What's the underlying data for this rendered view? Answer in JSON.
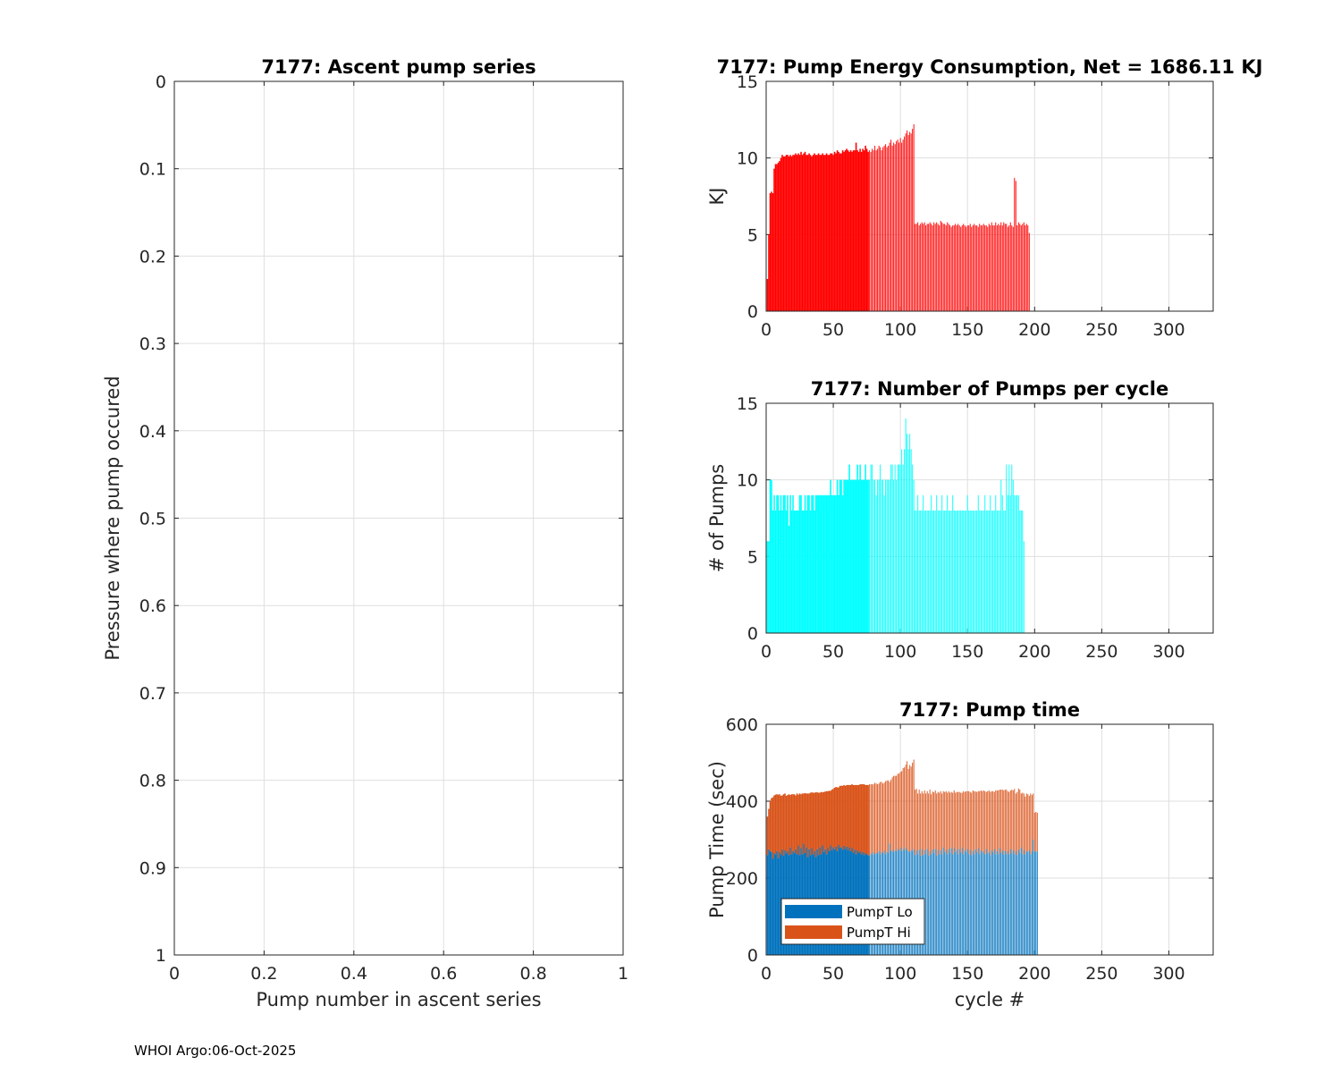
{
  "footer": "WHOI Argo:06-Oct-2025",
  "colors": {
    "energy": "#ff0000",
    "pumps": "#00ffff",
    "pumpLo": "#0072bd",
    "pumpHi": "#d95319",
    "grid": "#dfdfdf"
  },
  "chart_data": [
    {
      "id": "ascent",
      "type": "scatter",
      "title": "7177: Ascent pump series",
      "xlabel": "Pump number in ascent series",
      "ylabel": "Pressure where pump occured",
      "xlim": [
        0,
        1
      ],
      "ylim": [
        0,
        1
      ],
      "y_reversed": true,
      "grid": true,
      "xticks": [
        "0",
        "0.2",
        "0.4",
        "0.6",
        "0.8",
        "1"
      ],
      "yticks": [
        "0",
        "0.1",
        "0.2",
        "0.3",
        "0.4",
        "0.5",
        "0.6",
        "0.7",
        "0.8",
        "0.9",
        "1"
      ],
      "points": []
    },
    {
      "id": "energy",
      "type": "bar",
      "title": "7177: Pump Energy Consumption,  Net = 1686.11 KJ",
      "xlabel": "",
      "ylabel": "KJ",
      "xlim": [
        0,
        333
      ],
      "ylim": [
        0,
        15
      ],
      "grid": true,
      "xticks": [
        "0",
        "50",
        "100",
        "150",
        "200",
        "250",
        "300"
      ],
      "yticks": [
        "0",
        "5",
        "10",
        "15"
      ],
      "dense_until_cycle": 76,
      "values": [
        2.1,
        5.0,
        7.7,
        7.8,
        7.7,
        9.3,
        9.6,
        9.6,
        9.7,
        9.8,
        10.0,
        10.2,
        10.1,
        10.1,
        10.2,
        10.2,
        10.1,
        10.2,
        10.1,
        10.2,
        10.2,
        10.3,
        10.2,
        10.3,
        10.2,
        10.4,
        10.2,
        10.3,
        10.4,
        10.2,
        10.2,
        10.3,
        10.2,
        10.1,
        10.2,
        10.3,
        10.2,
        10.2,
        10.3,
        10.2,
        10.2,
        10.3,
        10.2,
        10.2,
        10.3,
        10.2,
        10.2,
        10.3,
        10.3,
        10.2,
        10.4,
        10.3,
        10.5,
        10.4,
        10.3,
        10.3,
        10.5,
        10.4,
        10.5,
        10.6,
        10.5,
        10.4,
        10.5,
        10.4,
        10.5,
        10.5,
        11.0,
        10.5,
        10.4,
        10.6,
        10.4,
        10.6,
        10.5,
        10.8,
        10.6,
        10.4,
        10.5,
        10.4,
        10.6,
        10.5,
        10.8,
        10.5,
        10.6,
        10.8,
        10.7,
        10.5,
        10.7,
        10.8,
        10.9,
        10.7,
        10.8,
        11.0,
        11.2,
        10.8,
        11.0,
        10.9,
        11.1,
        11.2,
        11.0,
        11.3,
        11.0,
        11.2,
        11.4,
        11.6,
        11.8,
        11.5,
        11.7,
        11.6,
        11.9,
        12.2,
        5.7,
        5.7,
        5.8,
        5.6,
        5.7,
        5.8,
        5.7,
        5.8,
        5.6,
        5.7,
        5.7,
        5.8,
        5.7,
        5.6,
        5.8,
        5.7,
        5.8,
        5.7,
        5.6,
        5.9,
        5.8,
        5.7,
        5.7,
        5.6,
        5.8,
        5.7,
        5.6,
        5.5,
        5.6,
        5.6,
        5.7,
        5.6,
        5.7,
        5.6,
        5.5,
        5.6,
        5.7,
        5.6,
        5.5,
        5.6,
        5.6,
        5.7,
        5.5,
        5.6,
        5.7,
        5.6,
        5.6,
        5.5,
        5.7,
        5.6,
        5.6,
        5.7,
        5.6,
        5.6,
        5.5,
        5.7,
        5.6,
        5.8,
        5.6,
        5.6,
        5.8,
        5.6,
        5.7,
        5.6,
        5.8,
        5.6,
        5.8,
        5.7,
        5.7,
        5.5,
        5.6,
        5.8,
        5.6,
        5.5,
        8.7,
        8.5,
        5.6,
        5.8,
        5.7,
        5.6,
        5.7,
        5.8,
        5.6,
        5.7,
        5.6,
        5.1
      ]
    },
    {
      "id": "pumps",
      "type": "bar",
      "title": "7177: Number of Pumps per cycle",
      "xlabel": "",
      "ylabel": "# of Pumps",
      "xlim": [
        0,
        333
      ],
      "ylim": [
        0,
        15
      ],
      "grid": true,
      "xticks": [
        "0",
        "50",
        "100",
        "150",
        "200",
        "250",
        "300"
      ],
      "yticks": [
        "0",
        "5",
        "10",
        "15"
      ],
      "dense_until_cycle": 76,
      "values": [
        6,
        6,
        10,
        10,
        8,
        9,
        8,
        9,
        9,
        8,
        9,
        8,
        9,
        9,
        8,
        9,
        7,
        9,
        8,
        9,
        8,
        8,
        8,
        8,
        9,
        9,
        8,
        8,
        9,
        8,
        9,
        9,
        8,
        9,
        9,
        8,
        9,
        9,
        9,
        9,
        9,
        9,
        9,
        9,
        9,
        9,
        9,
        10,
        9,
        9,
        9,
        9,
        10,
        9,
        10,
        10,
        9,
        10,
        10,
        10,
        10,
        11,
        10,
        10,
        10,
        10,
        10,
        11,
        10,
        11,
        10,
        10,
        10,
        11,
        10,
        10,
        10,
        11,
        11,
        10,
        10,
        9,
        10,
        10,
        11,
        10,
        10,
        9,
        10,
        10,
        10,
        10,
        11,
        11,
        10,
        11,
        10,
        11,
        11,
        11,
        12,
        11,
        12,
        14,
        13,
        12,
        13,
        12,
        11,
        10,
        8,
        8,
        9,
        8,
        8,
        8,
        9,
        8,
        8,
        8,
        8,
        8,
        9,
        8,
        8,
        8,
        9,
        8,
        8,
        8,
        9,
        8,
        8,
        8,
        9,
        8,
        8,
        8,
        9,
        8,
        8,
        8,
        8,
        8,
        8,
        8,
        8,
        8,
        8,
        9,
        8,
        8,
        8,
        8,
        8,
        8,
        8,
        9,
        8,
        8,
        8,
        8,
        9,
        8,
        8,
        8,
        9,
        8,
        8,
        8,
        9,
        8,
        8,
        8,
        10,
        9,
        8,
        8,
        11,
        9,
        11,
        9,
        11,
        10,
        9,
        9,
        9,
        9,
        8,
        8,
        8,
        6
      ]
    },
    {
      "id": "pumptime",
      "type": "bar",
      "stacked": true,
      "title": "7177: Pump time",
      "xlabel": "cycle #",
      "ylabel": "Pump Time (sec)",
      "xlim": [
        0,
        333
      ],
      "ylim": [
        0,
        600
      ],
      "grid": true,
      "xticks": [
        "0",
        "50",
        "100",
        "150",
        "200",
        "250",
        "300"
      ],
      "yticks": [
        "0",
        "200",
        "400",
        "600"
      ],
      "dense_until_cycle": 76,
      "legend": {
        "placement": "bottom-left",
        "entries": [
          "PumpT Lo",
          "PumpT Hi"
        ]
      },
      "series": [
        {
          "name": "PumpT Lo",
          "values": [
            260,
            275,
            270,
            268,
            250,
            265,
            262,
            270,
            252,
            268,
            262,
            275,
            258,
            272,
            264,
            270,
            260,
            280,
            262,
            270,
            265,
            275,
            262,
            285,
            260,
            278,
            262,
            290,
            265,
            280,
            255,
            275,
            260,
            278,
            262,
            270,
            255,
            275,
            260,
            280,
            262,
            285,
            268,
            275,
            262,
            278,
            270,
            285,
            272,
            280,
            275,
            282,
            270,
            286,
            278,
            280,
            274,
            284,
            276,
            282,
            272,
            280,
            270,
            278,
            266,
            274,
            262,
            272,
            266,
            270,
            262,
            268,
            260,
            266,
            262,
            260,
            258,
            264,
            262,
            268,
            262,
            266,
            264,
            270,
            262,
            268,
            266,
            272,
            262,
            268,
            266,
            290,
            270,
            274,
            268,
            272,
            270,
            276,
            272,
            280,
            270,
            276,
            272,
            280,
            274,
            270,
            268,
            272,
            270,
            276,
            260,
            272,
            262,
            274,
            258,
            276,
            260,
            272,
            262,
            276,
            258,
            270,
            262,
            275,
            265,
            276,
            258,
            274,
            262,
            272,
            262,
            280,
            268,
            274,
            262,
            276,
            266,
            278,
            262,
            280,
            268,
            274,
            262,
            276,
            268,
            280,
            262,
            272,
            268,
            276,
            262,
            274,
            260,
            270,
            262,
            275,
            268,
            278,
            262,
            272,
            266,
            270,
            262,
            276,
            264,
            268,
            260,
            272,
            268,
            276,
            262,
            270,
            262,
            278,
            266,
            272,
            262,
            270,
            262,
            270,
            262,
            276,
            264,
            272,
            262,
            270,
            260,
            275,
            266,
            280,
            262,
            274,
            262,
            270,
            268,
            272,
            262,
            270,
            300,
            270,
            268,
            270
          ]
        },
        {
          "name": "PumpT Hi",
          "values": [
            100,
            105,
            130,
            140,
            160,
            150,
            155,
            148,
            165,
            150,
            152,
            140,
            160,
            148,
            150,
            146,
            158,
            136,
            156,
            148,
            153,
            140,
            158,
            132,
            160,
            140,
            158,
            130,
            156,
            140,
            165,
            145,
            162,
            145,
            160,
            152,
            168,
            148,
            162,
            142,
            162,
            138,
            156,
            150,
            164,
            148,
            157,
            142,
            158,
            152,
            160,
            155,
            166,
            150,
            162,
            160,
            166,
            158,
            164,
            160,
            170,
            162,
            172,
            166,
            176,
            168,
            180,
            170,
            176,
            174,
            182,
            176,
            184,
            176,
            180,
            182,
            186,
            180,
            182,
            176,
            186,
            180,
            180,
            176,
            188,
            182,
            180,
            176,
            190,
            186,
            188,
            160,
            186,
            188,
            198,
            194,
            196,
            195,
            200,
            196,
            208,
            210,
            216,
            215,
            230,
            214,
            226,
            218,
            230,
            232,
            170,
            160,
            158,
            156,
            162,
            150,
            160,
            156,
            158,
            150,
            162,
            160,
            156,
            150,
            158,
            152,
            162,
            150,
            160,
            154,
            158,
            146,
            156,
            152,
            160,
            150,
            156,
            146,
            160,
            148,
            154,
            150,
            162,
            148,
            154,
            142,
            164,
            152,
            158,
            150,
            164,
            150,
            162,
            158,
            164,
            150,
            156,
            148,
            164,
            156,
            160,
            158,
            164,
            148,
            162,
            160,
            164,
            154,
            158,
            148,
            166,
            158,
            166,
            152,
            164,
            158,
            166,
            160,
            168,
            156,
            162,
            152,
            166,
            156,
            170,
            150,
            164,
            158,
            164,
            140,
            160,
            146,
            150,
            150,
            150,
            142,
            158,
            146,
            120,
            100,
            104,
            100
          ]
        }
      ]
    }
  ]
}
